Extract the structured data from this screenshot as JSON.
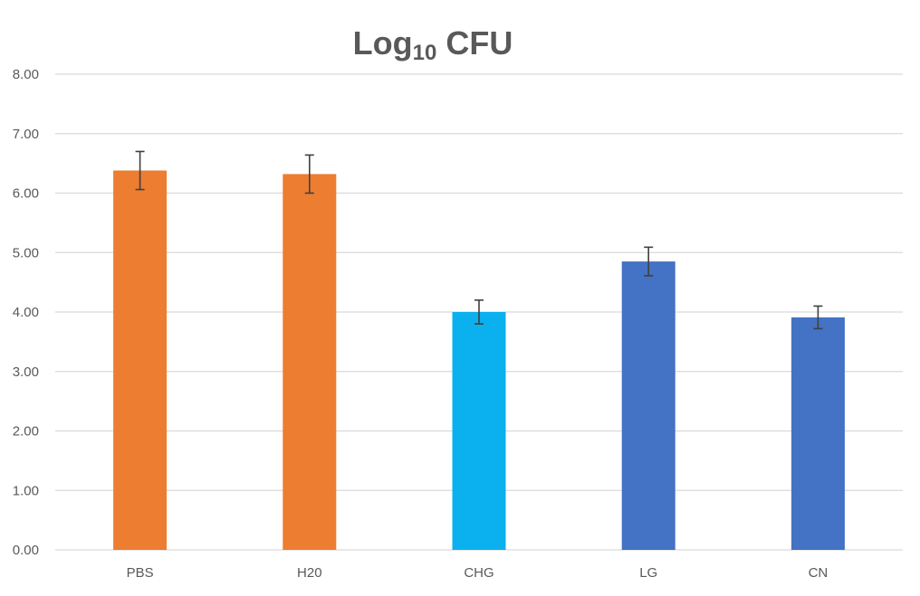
{
  "chart_data": {
    "type": "bar",
    "title": {
      "main": "Log",
      "subscript": "10",
      "suffix": " CFU"
    },
    "xlabel": "",
    "ylabel": "",
    "categories": [
      "PBS",
      "H20",
      "CHG",
      "LG",
      "CN"
    ],
    "values": [
      6.38,
      6.32,
      4.0,
      4.85,
      3.91
    ],
    "errors": [
      0.32,
      0.32,
      0.2,
      0.24,
      0.19
    ],
    "colors": [
      "#ED7D31",
      "#ED7D31",
      "#0BB0EE",
      "#4472C4",
      "#4472C4"
    ],
    "ylim": [
      0,
      8
    ],
    "yticks": [
      "0.00",
      "1.00",
      "2.00",
      "3.00",
      "4.00",
      "5.00",
      "6.00",
      "7.00",
      "8.00"
    ],
    "grid": true,
    "legend": "none"
  }
}
